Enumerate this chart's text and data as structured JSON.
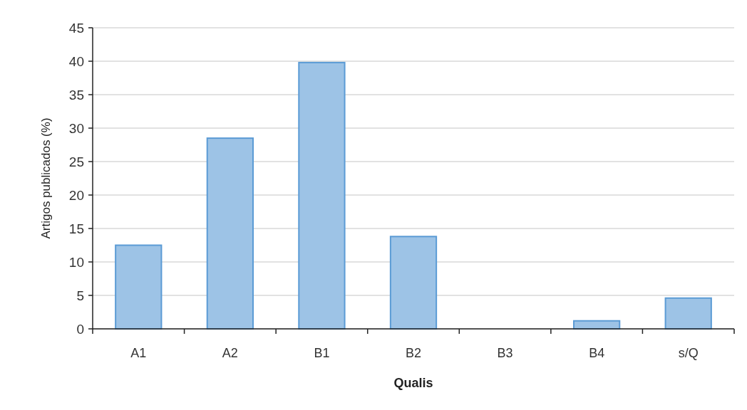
{
  "chart_data": {
    "type": "bar",
    "xlabel": "Qualis",
    "ylabel": "Artigos publicados (%)",
    "categories": [
      "A1",
      "A2",
      "B1",
      "B2",
      "B3",
      "B4",
      "s/Q"
    ],
    "values": [
      12.5,
      28.5,
      39.8,
      13.8,
      0,
      1.2,
      4.6
    ],
    "color": "#9dc3e6",
    "ylim": [
      0,
      45
    ],
    "yticks": [
      0,
      5,
      10,
      15,
      20,
      25,
      30,
      35,
      40,
      45
    ],
    "grid": "y"
  }
}
